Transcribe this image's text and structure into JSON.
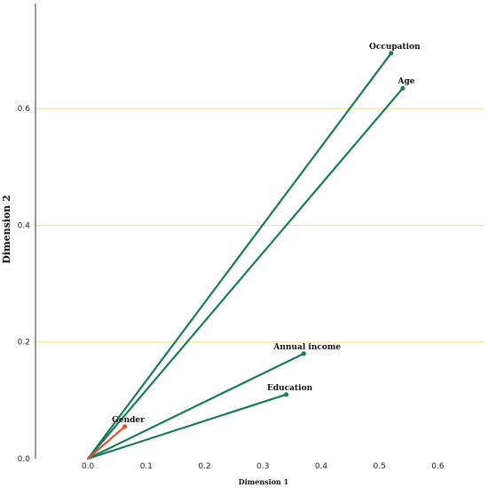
{
  "chart_data": {
    "type": "line",
    "title": "",
    "xlabel": "Dimension 1",
    "ylabel": "Dimension 2",
    "xlim": [
      -0.09,
      0.68
    ],
    "ylim": [
      0,
      0.78
    ],
    "xticks": [
      "0.0",
      "0.1",
      "0.2",
      "0.3",
      "0.4",
      "0.5",
      "0.6"
    ],
    "yticks": [
      "0.0",
      "0.2",
      "0.4",
      "0.6"
    ],
    "gridlines": [
      0.2,
      0.4,
      0.6
    ],
    "grid_color": "#f2e08a",
    "series": [
      {
        "name": "Occupation",
        "x": [
          0,
          0.52
        ],
        "y": [
          0,
          0.695
        ],
        "color": "#1a7a5c"
      },
      {
        "name": "Age",
        "x": [
          0,
          0.54
        ],
        "y": [
          0,
          0.635
        ],
        "color": "#1a7a5c"
      },
      {
        "name": "Annual income",
        "x": [
          0,
          0.37
        ],
        "y": [
          0,
          0.18
        ],
        "color": "#1a7a5c"
      },
      {
        "name": "Education",
        "x": [
          0,
          0.34
        ],
        "y": [
          0,
          0.11
        ],
        "color": "#1a7a5c"
      },
      {
        "name": "Gender",
        "x": [
          0,
          0.063
        ],
        "y": [
          0,
          0.055
        ],
        "color": "#e0522e"
      }
    ]
  }
}
